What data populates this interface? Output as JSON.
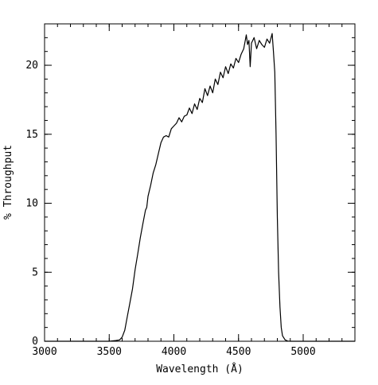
{
  "chart_data": {
    "type": "line",
    "title": "",
    "xlabel": "Wavelength (Å)",
    "ylabel": "% Throughput",
    "xlim": [
      3000,
      5400
    ],
    "ylim": [
      0,
      23
    ],
    "x_ticks": [
      3000,
      3500,
      4000,
      4500,
      5000
    ],
    "y_ticks": [
      0,
      5,
      10,
      15,
      20
    ],
    "x_tick_labels": [
      "3000",
      "3500",
      "4000",
      "4500",
      "5000"
    ],
    "y_tick_labels": [
      "0",
      "5",
      "10",
      "15",
      "20"
    ],
    "x_minor_step": 100,
    "y_minor_step": 1,
    "grid": false,
    "legend": "none",
    "line_color": "#000000",
    "series": [
      {
        "x": [
          3000,
          3500,
          3550,
          3580,
          3600,
          3620,
          3640,
          3660,
          3680,
          3700,
          3720,
          3740,
          3760,
          3780,
          3790,
          3800,
          3820,
          3840,
          3860,
          3880,
          3900,
          3920,
          3940,
          3960,
          3980,
          4000,
          4020,
          4040,
          4060,
          4080,
          4100,
          4120,
          4140,
          4160,
          4180,
          4200,
          4220,
          4240,
          4260,
          4280,
          4300,
          4320,
          4340,
          4360,
          4380,
          4400,
          4420,
          4440,
          4460,
          4480,
          4500,
          4520,
          4540,
          4560,
          4570,
          4580,
          4590,
          4600,
          4620,
          4640,
          4660,
          4680,
          4700,
          4720,
          4740,
          4760,
          4770,
          4780,
          4790,
          4800,
          4810,
          4820,
          4830,
          4840,
          4860,
          4880,
          4900,
          5000,
          5400
        ],
        "y": [
          0,
          0,
          0.05,
          0.1,
          0.3,
          0.8,
          1.8,
          2.8,
          3.8,
          5.2,
          6.3,
          7.5,
          8.5,
          9.5,
          9.7,
          10.5,
          11.3,
          12.2,
          12.8,
          13.6,
          14.4,
          14.8,
          14.9,
          14.8,
          15.4,
          15.6,
          15.8,
          16.2,
          15.9,
          16.3,
          16.4,
          16.9,
          16.5,
          17.2,
          16.8,
          17.6,
          17.3,
          18.3,
          17.8,
          18.5,
          18.0,
          19.0,
          18.6,
          19.5,
          19.1,
          19.9,
          19.4,
          20.1,
          19.8,
          20.5,
          20.2,
          20.8,
          21.2,
          22.2,
          21.5,
          21.8,
          19.9,
          21.6,
          22.0,
          21.2,
          21.8,
          21.5,
          21.3,
          21.9,
          21.6,
          22.3,
          21.0,
          19.5,
          15.0,
          9.0,
          5.0,
          2.5,
          1.0,
          0.4,
          0.1,
          0.02,
          0,
          0,
          0
        ]
      }
    ]
  }
}
